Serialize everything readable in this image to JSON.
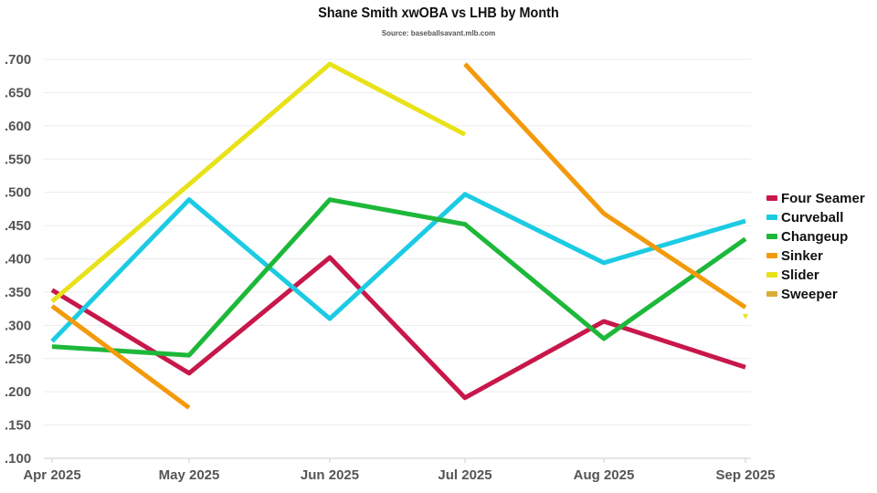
{
  "chart_data": {
    "type": "line",
    "title": "Shane Smith xwOBA vs LHB by Month",
    "subtitle": "Source: baseballsavant.mlb.com",
    "categories": [
      "Apr 2025",
      "May 2025",
      "Jun 2025",
      "Jul 2025",
      "Aug 2025",
      "Sep 2025"
    ],
    "ylim": [
      0.1,
      0.7
    ],
    "yticks": [
      ".100",
      ".150",
      ".200",
      ".250",
      ".300",
      ".350",
      ".400",
      ".450",
      ".500",
      ".550",
      ".600",
      ".650",
      ".700"
    ],
    "grid": true,
    "legend_position": "right",
    "series": [
      {
        "name": "Four Seamer",
        "color": "#c8174a",
        "values": [
          0.353,
          0.228,
          0.402,
          0.191,
          0.306,
          0.237
        ]
      },
      {
        "name": "Curveball",
        "color": "#1ccbe3",
        "values": [
          0.276,
          0.489,
          0.31,
          0.497,
          0.394,
          0.457
        ]
      },
      {
        "name": "Changeup",
        "color": "#1db83a",
        "values": [
          0.268,
          0.255,
          0.489,
          0.452,
          0.28,
          0.43
        ]
      },
      {
        "name": "Sinker",
        "color": "#f39a0b",
        "values": [
          0.329,
          0.176,
          null,
          0.693,
          0.468,
          0.327
        ]
      },
      {
        "name": "Slider",
        "color": "#e8e21a",
        "values": [
          0.336,
          0.512,
          0.693,
          0.587,
          null,
          0.313
        ]
      },
      {
        "name": "Sweeper",
        "color": "#d9ad35",
        "values": [
          null,
          null,
          null,
          null,
          null,
          null
        ]
      }
    ]
  }
}
